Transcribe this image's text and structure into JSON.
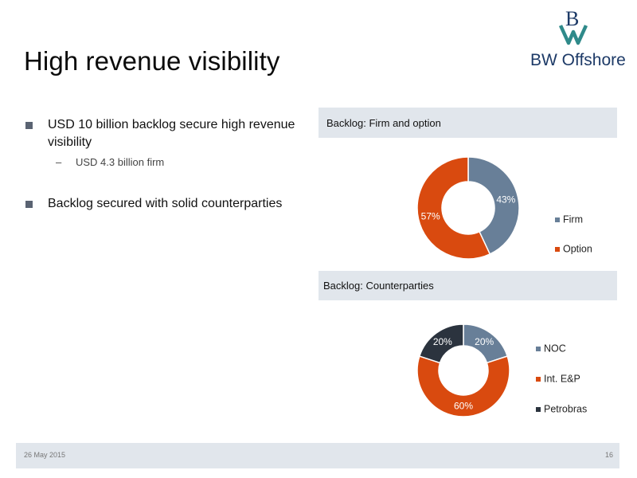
{
  "slide": {
    "title": "High revenue visibility",
    "company": "BW Offshore",
    "footer_date": "26 May 2015",
    "page_number": "16"
  },
  "bullets": {
    "first": "USD 10 billion backlog secure high revenue visibility",
    "first_sub": "USD 4.3 billion firm",
    "second": "Backlog secured with solid counterparties"
  },
  "colors": {
    "slate": "#687f98",
    "orange": "#d94a0f",
    "navy": "#2b333e",
    "header_bg": "#e1e6ec"
  },
  "chart_data": [
    {
      "type": "pie",
      "donut": true,
      "title": "Backlog: Firm and option",
      "categories": [
        "Firm",
        "Option"
      ],
      "values": [
        43,
        57
      ],
      "labels": [
        "43%",
        "57%"
      ],
      "colors": [
        "#687f98",
        "#d94a0f"
      ],
      "legend": "right"
    },
    {
      "type": "pie",
      "donut": true,
      "title": "Backlog: Counterparties",
      "categories": [
        "NOC",
        "Int. E&P",
        "Petrobras"
      ],
      "values": [
        20,
        60,
        20
      ],
      "labels": [
        "20%",
        "60%",
        "20%"
      ],
      "colors": [
        "#687f98",
        "#d94a0f",
        "#2b333e"
      ],
      "legend": "right"
    }
  ]
}
